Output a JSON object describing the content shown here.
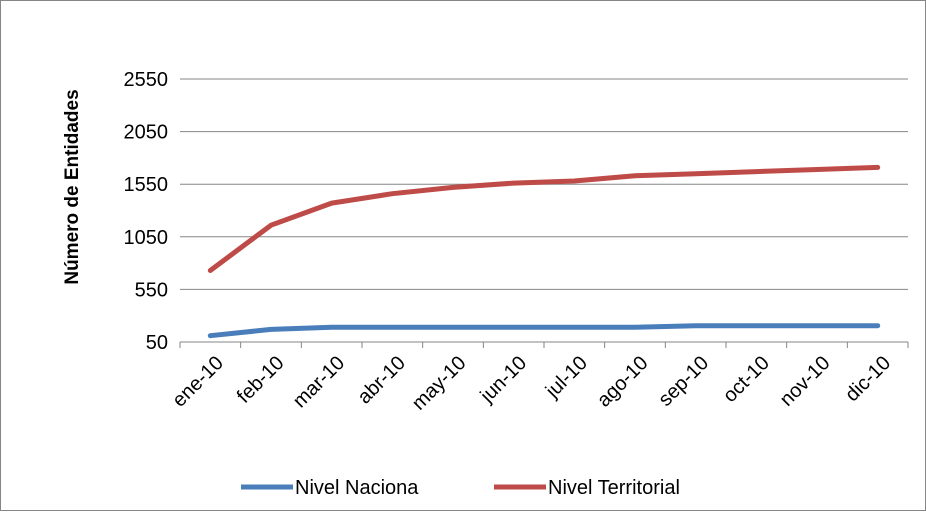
{
  "chart_data": {
    "type": "line",
    "ylabel": "Número de Entidades",
    "xlabel": "",
    "categories": [
      "ene-10",
      "feb-10",
      "mar-10",
      "abr-10",
      "may-10",
      "jun-10",
      "jul-10",
      "ago-10",
      "sep-10",
      "oct-10",
      "nov-10",
      "dic-10"
    ],
    "yticks": [
      "50",
      "550",
      "1050",
      "1550",
      "2050",
      "2550"
    ],
    "ylim": [
      50,
      2550
    ],
    "grid": true,
    "legend": "bottom",
    "series": [
      {
        "name": "Nivel Naciona",
        "color": "#4a7ebb",
        "values": [
          110,
          170,
          190,
          190,
          190,
          190,
          190,
          190,
          205,
          205,
          205,
          205
        ]
      },
      {
        "name": "Nivel Territorial",
        "color": "#be4b48",
        "values": [
          730,
          1160,
          1370,
          1460,
          1520,
          1560,
          1580,
          1630,
          1650,
          1670,
          1690,
          1710
        ]
      }
    ]
  }
}
